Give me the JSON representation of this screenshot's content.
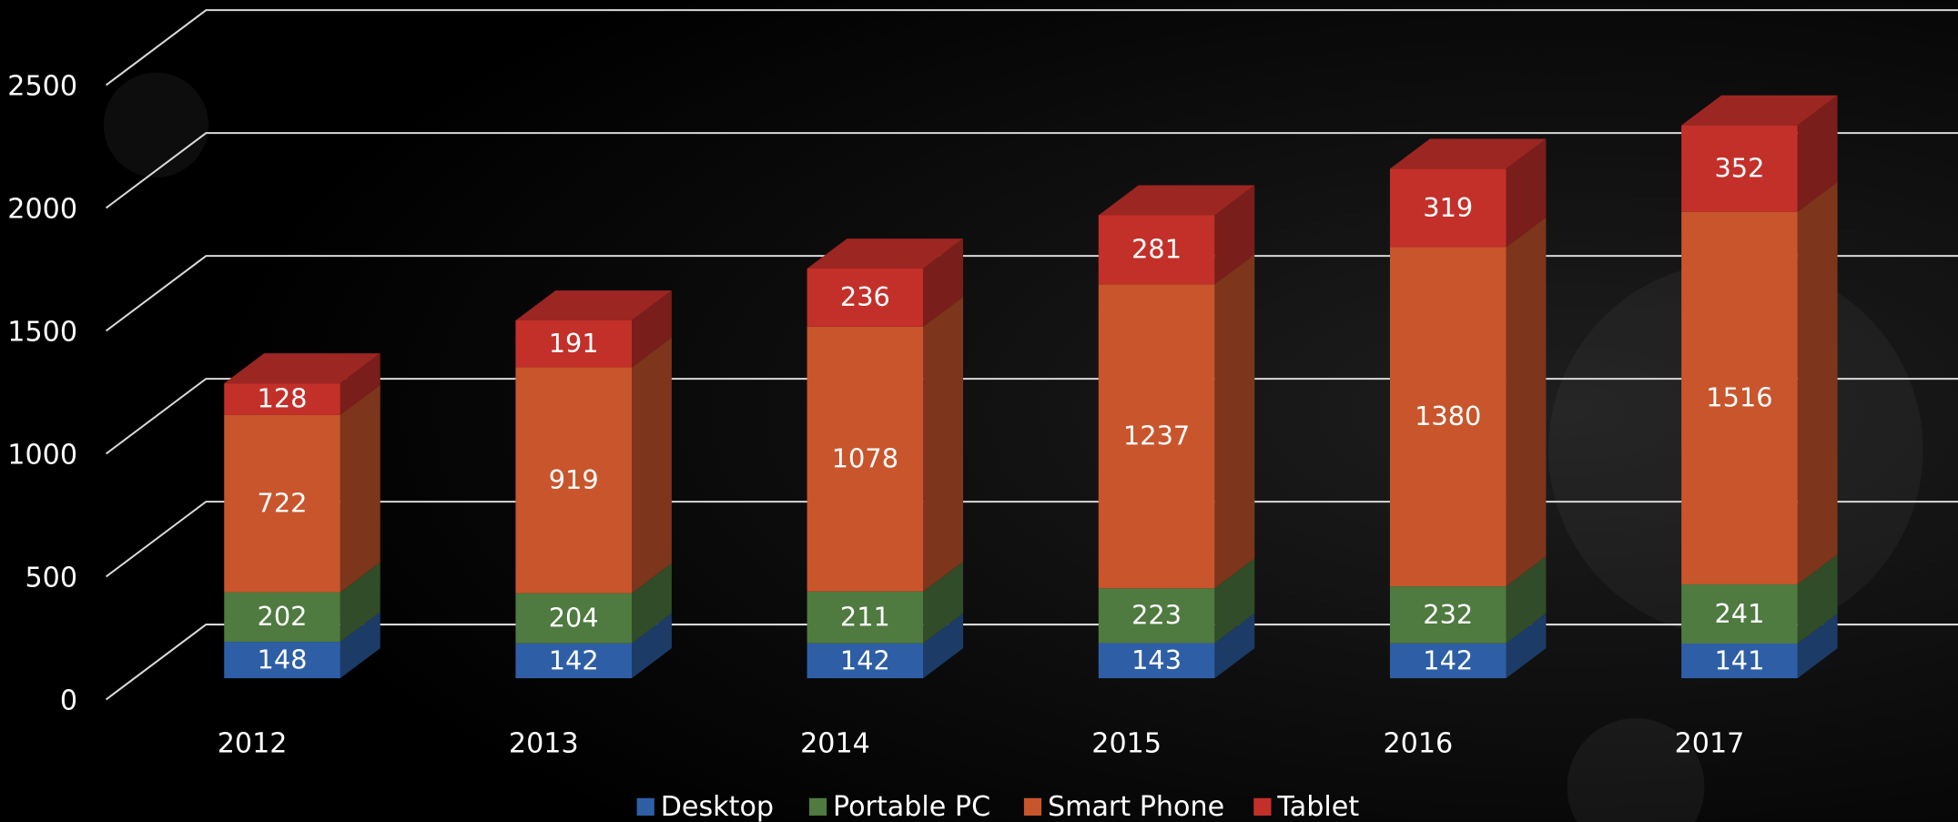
{
  "chart_data": {
    "type": "bar3d_stacked",
    "categories": [
      "2012",
      "2013",
      "2014",
      "2015",
      "2016",
      "2017"
    ],
    "series": [
      {
        "name": "Desktop",
        "color": "#2e5fa6",
        "values": [
          148,
          142,
          142,
          143,
          142,
          141
        ]
      },
      {
        "name": "Portable PC",
        "color": "#4f7a40",
        "values": [
          202,
          204,
          211,
          223,
          232,
          241
        ]
      },
      {
        "name": "Smart Phone",
        "color": "#c9552c",
        "values": [
          722,
          919,
          1078,
          1237,
          1380,
          1516
        ]
      },
      {
        "name": "Tablet",
        "color": "#c3302a",
        "values": [
          128,
          191,
          236,
          281,
          319,
          352
        ]
      }
    ],
    "ylim": [
      0,
      3000
    ],
    "yticks": [
      0,
      500,
      1000,
      1500,
      2000,
      2500
    ],
    "grid": true,
    "legend": "bottom"
  }
}
